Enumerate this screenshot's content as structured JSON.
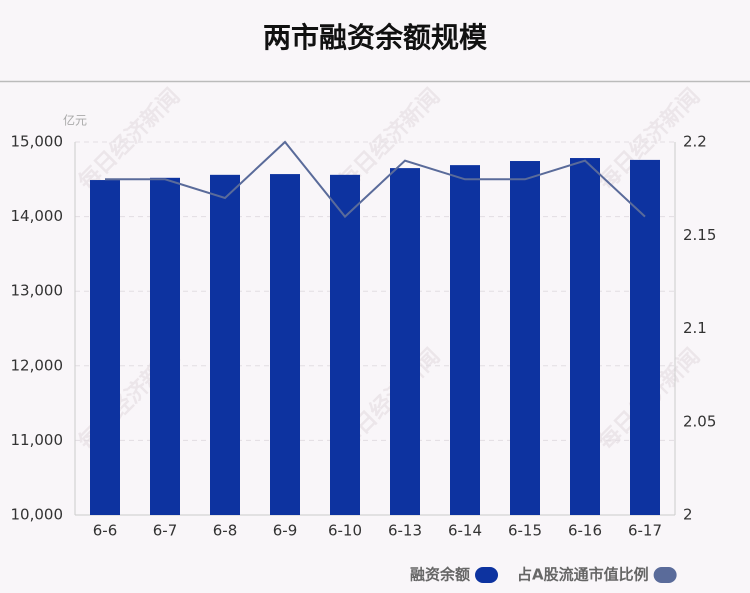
{
  "chart_data": {
    "type": "bar",
    "title": "两市融资余额规模",
    "unit": "亿元",
    "watermark": "每日经济新闻",
    "categories": [
      "6-6",
      "6-7",
      "6-8",
      "6-9",
      "6-10",
      "6-13",
      "6-14",
      "6-15",
      "6-16",
      "6-17"
    ],
    "series": [
      {
        "name": "融资余额",
        "type": "bar",
        "color": "#0d33a0",
        "values": [
          14490,
          14520,
          14560,
          14570,
          14560,
          14650,
          14690,
          14745,
          14785,
          14760
        ]
      },
      {
        "name": "占A股流通市值比例",
        "type": "line",
        "axis": "y2",
        "color": "#5a6b9a",
        "values": [
          2.18,
          2.18,
          2.17,
          2.2,
          2.16,
          2.19,
          2.18,
          2.18,
          2.19,
          2.16
        ]
      }
    ],
    "ylim": [
      10000,
      15000
    ],
    "yticks": [
      {
        "value": 10000,
        "label": "10,000"
      },
      {
        "value": 11000,
        "label": "11,000"
      },
      {
        "value": 12000,
        "label": "12,000"
      },
      {
        "value": 13000,
        "label": "13,000"
      },
      {
        "value": 14000,
        "label": "14,000"
      },
      {
        "value": 15000,
        "label": "15,000"
      }
    ],
    "y2lim": [
      2,
      2.2
    ],
    "y2ticks": [
      2,
      2.05,
      2.1,
      2.15,
      2.2
    ],
    "grid": true
  }
}
